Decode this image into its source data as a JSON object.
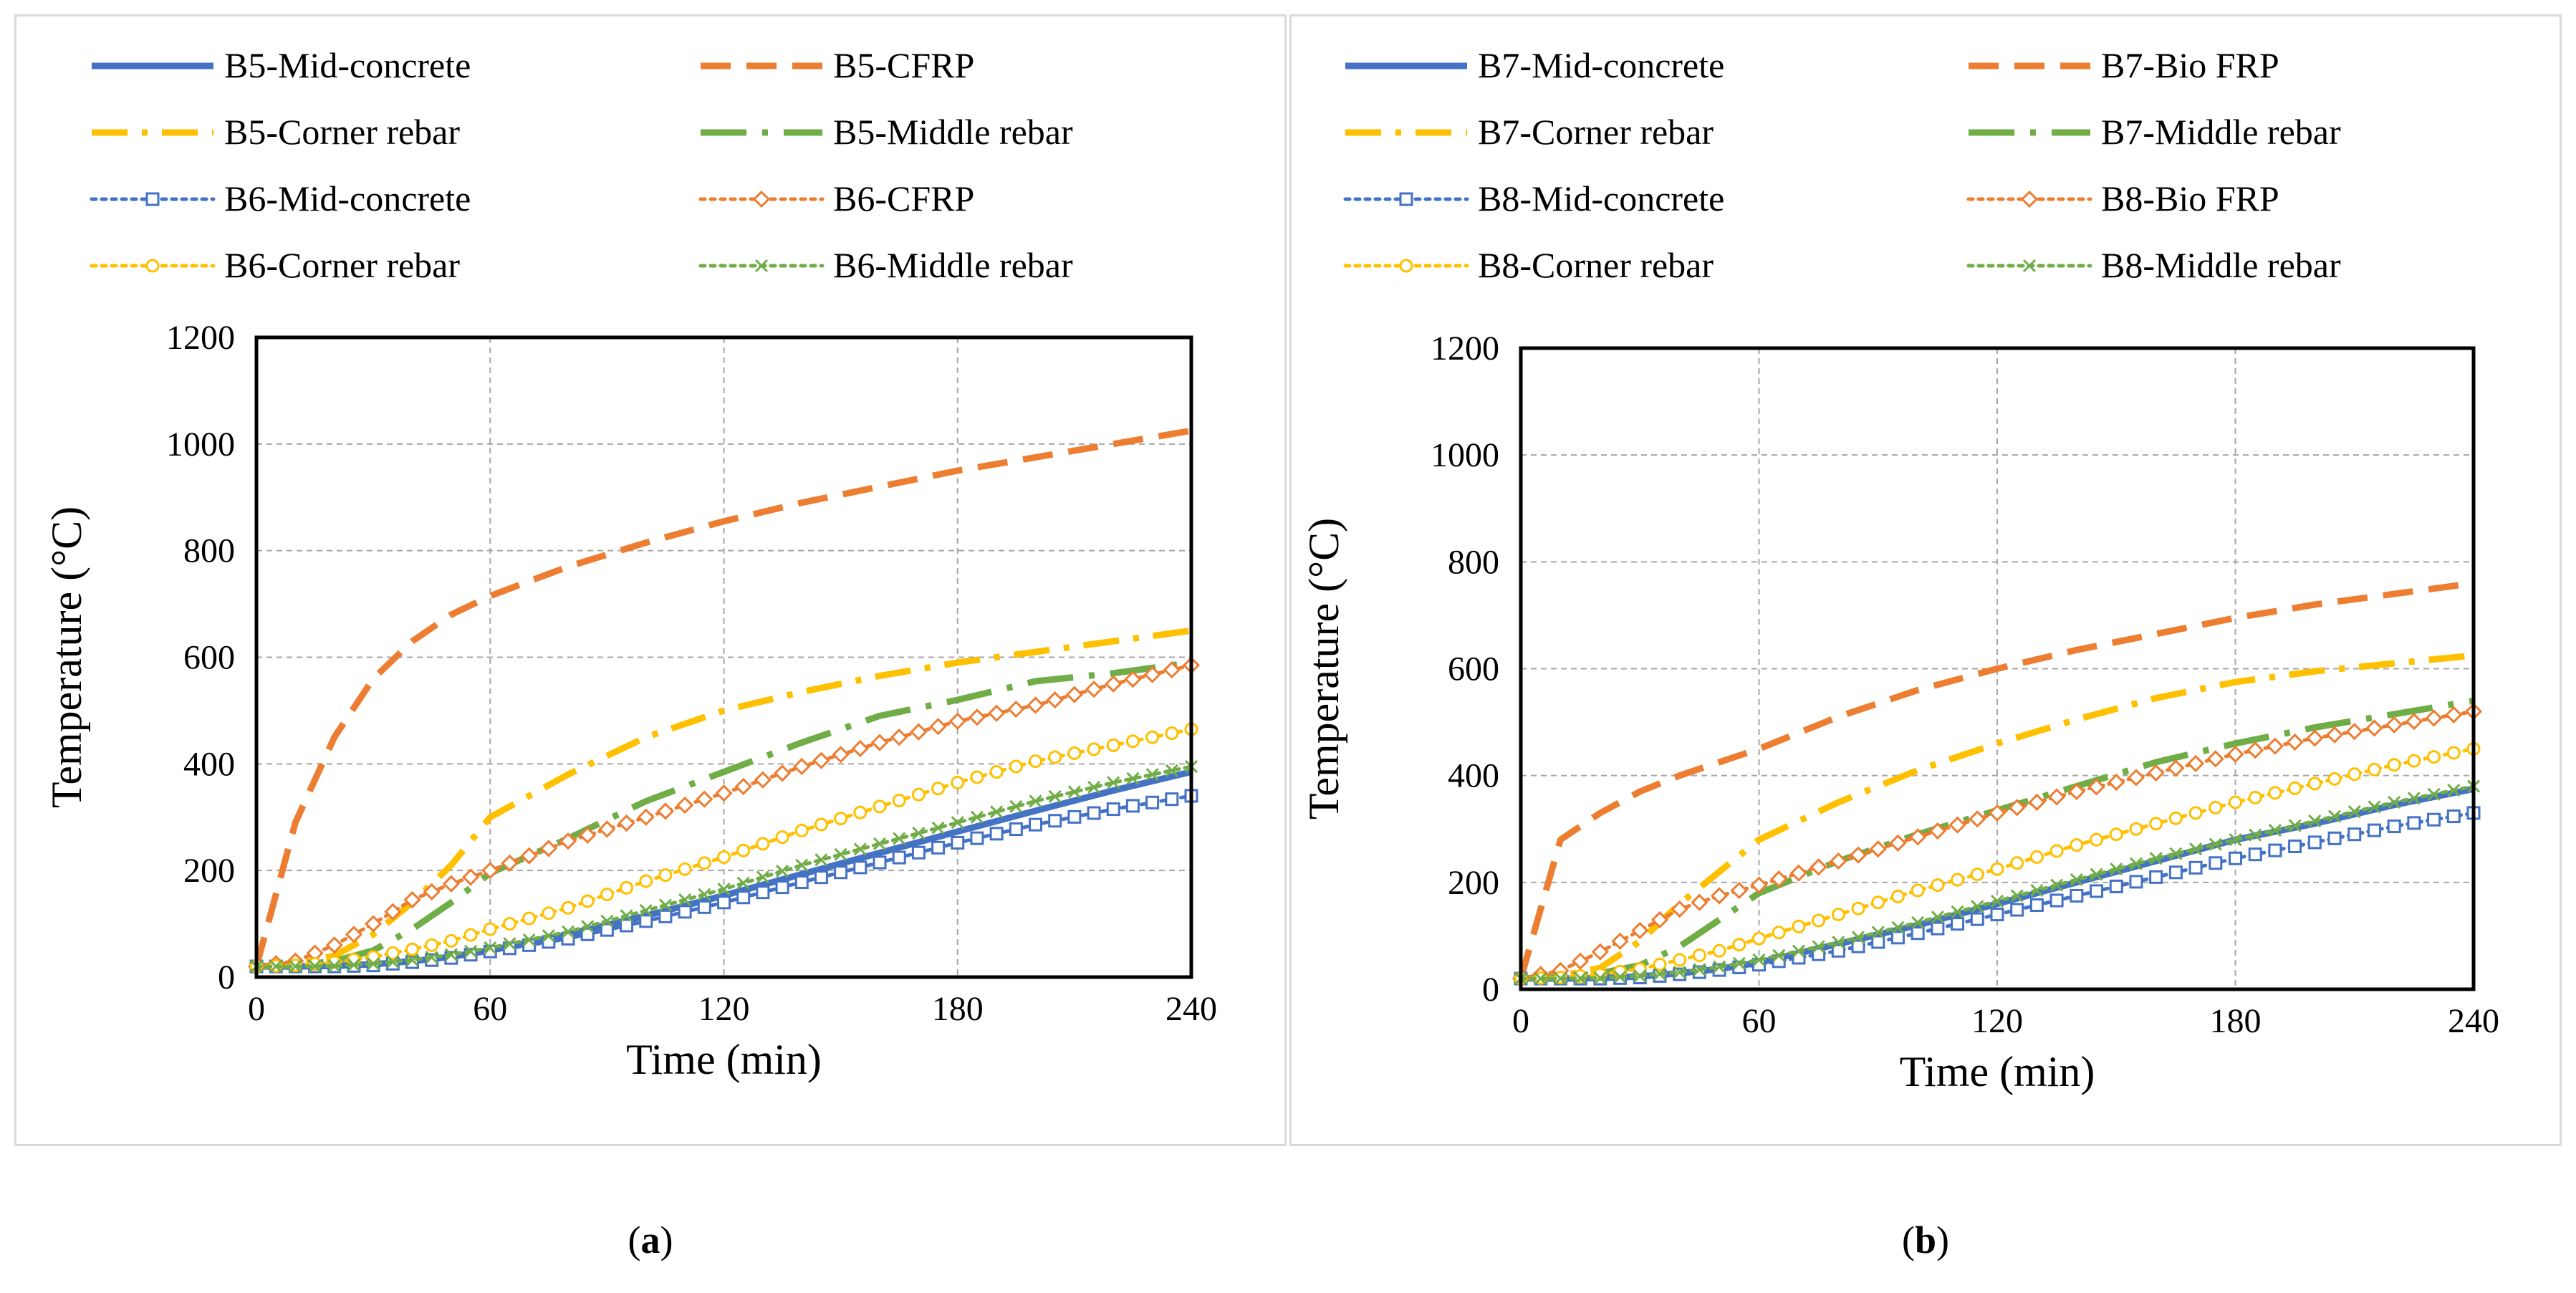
{
  "captions": {
    "a": "a",
    "b": "b"
  },
  "chart_data": [
    {
      "type": "line",
      "panel": "a",
      "title": "",
      "xlabel": "Time (min)",
      "ylabel": "Temperature (°C)",
      "xlim": [
        0,
        240
      ],
      "ylim": [
        0,
        1200
      ],
      "xticks": [
        0,
        60,
        120,
        180,
        240
      ],
      "yticks": [
        0,
        200,
        400,
        600,
        800,
        1000,
        1200
      ],
      "grid": true,
      "legend": "top",
      "x": [
        0,
        10,
        20,
        30,
        40,
        50,
        60,
        80,
        100,
        120,
        140,
        160,
        180,
        200,
        220,
        240
      ],
      "series": [
        {
          "name": "B5-Mid-concrete",
          "color": "#4472c4",
          "style": "solid",
          "marker": "none",
          "values": [
            20,
            20,
            21,
            24,
            30,
            38,
            50,
            80,
            115,
            153,
            193,
            233,
            273,
            312,
            350,
            385
          ]
        },
        {
          "name": "B5-CFRP",
          "color": "#ed7d31",
          "style": "dash",
          "marker": "none",
          "values": [
            20,
            290,
            450,
            560,
            630,
            680,
            715,
            770,
            815,
            855,
            890,
            920,
            950,
            975,
            1000,
            1025
          ]
        },
        {
          "name": "B5-Corner rebar",
          "color": "#ffc000",
          "style": "dashdot",
          "marker": "none",
          "values": [
            20,
            25,
            40,
            80,
            140,
            210,
            300,
            380,
            450,
            500,
            535,
            565,
            590,
            610,
            630,
            650
          ]
        },
        {
          "name": "B5-Middle rebar",
          "color": "#70ad47",
          "style": "longdashdot",
          "marker": "none",
          "values": [
            20,
            22,
            30,
            50,
            90,
            140,
            195,
            260,
            330,
            385,
            440,
            490,
            520,
            555,
            570,
            590
          ]
        },
        {
          "name": "B6-Mid-concrete",
          "color": "#4472c4",
          "style": "dot",
          "marker": "square",
          "values": [
            20,
            20,
            20,
            22,
            28,
            36,
            48,
            72,
            105,
            140,
            178,
            215,
            252,
            286,
            315,
            340
          ]
        },
        {
          "name": "B6-CFRP",
          "color": "#ed7d31",
          "style": "dot",
          "marker": "diamond",
          "values": [
            20,
            30,
            60,
            100,
            145,
            175,
            200,
            255,
            300,
            345,
            395,
            440,
            480,
            510,
            550,
            585
          ]
        },
        {
          "name": "B6-Corner rebar",
          "color": "#ffc000",
          "style": "dot",
          "marker": "circle",
          "values": [
            20,
            22,
            28,
            38,
            52,
            68,
            90,
            130,
            180,
            225,
            275,
            320,
            365,
            405,
            435,
            465
          ]
        },
        {
          "name": "B6-Middle rebar",
          "color": "#70ad47",
          "style": "dot",
          "marker": "x",
          "values": [
            20,
            20,
            21,
            25,
            32,
            42,
            55,
            85,
            125,
            165,
            210,
            250,
            290,
            330,
            365,
            395
          ]
        }
      ]
    },
    {
      "type": "line",
      "panel": "b",
      "title": "",
      "xlabel": "Time (min)",
      "ylabel": "Temperature (°C)",
      "xlim": [
        0,
        240
      ],
      "ylim": [
        0,
        1200
      ],
      "xticks": [
        0,
        60,
        120,
        180,
        240
      ],
      "yticks": [
        0,
        200,
        400,
        600,
        800,
        1000,
        1200
      ],
      "grid": true,
      "legend": "top",
      "x": [
        0,
        10,
        20,
        30,
        40,
        50,
        60,
        80,
        100,
        120,
        140,
        160,
        180,
        200,
        220,
        240
      ],
      "series": [
        {
          "name": "B7-Mid-concrete",
          "color": "#4472c4",
          "style": "solid",
          "marker": "none",
          "values": [
            20,
            20,
            21,
            24,
            30,
            38,
            50,
            85,
            120,
            160,
            200,
            240,
            280,
            310,
            345,
            375
          ]
        },
        {
          "name": "B7-Bio FRP",
          "color": "#ed7d31",
          "style": "dash",
          "marker": "none",
          "values": [
            20,
            280,
            330,
            370,
            400,
            425,
            450,
            510,
            560,
            600,
            635,
            665,
            695,
            720,
            740,
            760
          ]
        },
        {
          "name": "B7-Corner rebar",
          "color": "#ffc000",
          "style": "dashdot",
          "marker": "none",
          "values": [
            20,
            25,
            40,
            90,
            160,
            220,
            280,
            350,
            410,
            460,
            505,
            545,
            575,
            595,
            610,
            625
          ]
        },
        {
          "name": "B7-Middle rebar",
          "color": "#70ad47",
          "style": "longdashdot",
          "marker": "none",
          "values": [
            20,
            22,
            30,
            45,
            80,
            130,
            180,
            240,
            290,
            335,
            380,
            425,
            460,
            490,
            515,
            540
          ]
        },
        {
          "name": "B8-Mid-concrete",
          "color": "#4472c4",
          "style": "dot",
          "marker": "square",
          "values": [
            20,
            20,
            20,
            22,
            28,
            36,
            46,
            72,
            105,
            140,
            175,
            210,
            245,
            275,
            305,
            330
          ]
        },
        {
          "name": "B8-Bio FRP",
          "color": "#ed7d31",
          "style": "dot",
          "marker": "diamond",
          "values": [
            20,
            35,
            70,
            110,
            150,
            175,
            195,
            240,
            285,
            330,
            370,
            405,
            440,
            470,
            495,
            520
          ]
        },
        {
          "name": "B8-Corner rebar",
          "color": "#ffc000",
          "style": "dot",
          "marker": "circle",
          "values": [
            20,
            22,
            28,
            38,
            55,
            72,
            95,
            140,
            185,
            225,
            270,
            310,
            350,
            385,
            420,
            450
          ]
        },
        {
          "name": "B8-Middle rebar",
          "color": "#70ad47",
          "style": "dot",
          "marker": "x",
          "values": [
            20,
            20,
            21,
            25,
            32,
            42,
            55,
            88,
            125,
            165,
            205,
            245,
            280,
            315,
            350,
            380
          ]
        }
      ]
    }
  ]
}
